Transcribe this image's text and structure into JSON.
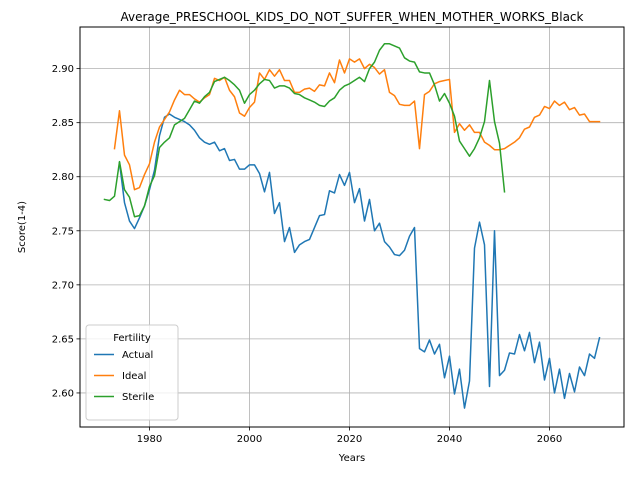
{
  "chart_data": {
    "type": "line",
    "title": "Average_PRESCHOOL_KIDS_DO_NOT_SUFFER_WHEN_MOTHER_WORKS_Black",
    "xlabel": "Years",
    "ylabel": "Score(1-4)",
    "xlim": [
      1966.1,
      2074.9
    ],
    "ylim": [
      2.5685,
      2.9385
    ],
    "xticks": [
      1980,
      2000,
      2020,
      2040,
      2060
    ],
    "yticks": [
      2.6,
      2.65,
      2.7,
      2.75,
      2.8,
      2.85,
      2.9
    ],
    "ytick_labels": [
      "2.60",
      "2.65",
      "2.70",
      "2.75",
      "2.80",
      "2.85",
      "2.90"
    ],
    "grid": true,
    "legend": {
      "title": "Fertility",
      "placement": "lower-left"
    },
    "colors": {
      "Actual": "#1f77b4",
      "Ideal": "#ff7f0e",
      "Sterile": "#2ca02c"
    },
    "series": [
      {
        "name": "Actual",
        "points": [
          [
            1974,
            2.813
          ],
          [
            1975,
            2.776
          ],
          [
            1976,
            2.759
          ],
          [
            1977,
            2.752
          ],
          [
            1978,
            2.762
          ],
          [
            1979,
            2.773
          ],
          [
            1980,
            2.788
          ],
          [
            1981,
            2.806
          ],
          [
            1982,
            2.838
          ],
          [
            1983,
            2.855
          ],
          [
            1984,
            2.858
          ],
          [
            1985,
            2.855
          ],
          [
            1986,
            2.853
          ],
          [
            1987,
            2.851
          ],
          [
            1988,
            2.848
          ],
          [
            1989,
            2.843
          ],
          [
            1990,
            2.836
          ],
          [
            1991,
            2.832
          ],
          [
            1992,
            2.83
          ],
          [
            1993,
            2.832
          ],
          [
            1994,
            2.824
          ],
          [
            1995,
            2.826
          ],
          [
            1996,
            2.815
          ],
          [
            1997,
            2.816
          ],
          [
            1998,
            2.807
          ],
          [
            1999,
            2.807
          ],
          [
            2000,
            2.811
          ],
          [
            2001,
            2.811
          ],
          [
            2002,
            2.803
          ],
          [
            2003,
            2.786
          ],
          [
            2004,
            2.804
          ],
          [
            2005,
            2.766
          ],
          [
            2006,
            2.776
          ],
          [
            2007,
            2.74
          ],
          [
            2008,
            2.753
          ],
          [
            2009,
            2.73
          ],
          [
            2010,
            2.737
          ],
          [
            2011,
            2.74
          ],
          [
            2012,
            2.742
          ],
          [
            2013,
            2.753
          ],
          [
            2014,
            2.764
          ],
          [
            2015,
            2.765
          ],
          [
            2016,
            2.787
          ],
          [
            2017,
            2.785
          ],
          [
            2018,
            2.802
          ],
          [
            2019,
            2.792
          ],
          [
            2020,
            2.804
          ],
          [
            2021,
            2.776
          ],
          [
            2022,
            2.789
          ],
          [
            2023,
            2.759
          ],
          [
            2024,
            2.779
          ],
          [
            2025,
            2.75
          ],
          [
            2026,
            2.757
          ],
          [
            2027,
            2.74
          ],
          [
            2028,
            2.735
          ],
          [
            2029,
            2.728
          ],
          [
            2030,
            2.727
          ],
          [
            2031,
            2.732
          ],
          [
            2032,
            2.745
          ],
          [
            2033,
            2.753
          ],
          [
            2034,
            2.641
          ],
          [
            2035,
            2.638
          ],
          [
            2036,
            2.649
          ],
          [
            2037,
            2.636
          ],
          [
            2038,
            2.645
          ],
          [
            2039,
            2.614
          ],
          [
            2040,
            2.634
          ],
          [
            2041,
            2.599
          ],
          [
            2042,
            2.622
          ],
          [
            2043,
            2.586
          ],
          [
            2044,
            2.611
          ],
          [
            2045,
            2.734
          ],
          [
            2046,
            2.758
          ],
          [
            2047,
            2.737
          ],
          [
            2048,
            2.606
          ],
          [
            2049,
            2.75
          ],
          [
            2050,
            2.616
          ],
          [
            2051,
            2.621
          ],
          [
            2052,
            2.637
          ],
          [
            2053,
            2.636
          ],
          [
            2054,
            2.654
          ],
          [
            2055,
            2.639
          ],
          [
            2056,
            2.656
          ],
          [
            2057,
            2.628
          ],
          [
            2058,
            2.647
          ],
          [
            2059,
            2.612
          ],
          [
            2060,
            2.632
          ],
          [
            2061,
            2.6
          ],
          [
            2062,
            2.622
          ],
          [
            2063,
            2.595
          ],
          [
            2064,
            2.618
          ],
          [
            2065,
            2.601
          ],
          [
            2066,
            2.624
          ],
          [
            2067,
            2.616
          ],
          [
            2068,
            2.636
          ],
          [
            2069,
            2.632
          ],
          [
            2070,
            2.651
          ]
        ]
      },
      {
        "name": "Ideal",
        "points": [
          [
            1973,
            2.826
          ],
          [
            1974,
            2.861
          ],
          [
            1975,
            2.82
          ],
          [
            1976,
            2.811
          ],
          [
            1977,
            2.788
          ],
          [
            1978,
            2.79
          ],
          [
            1979,
            2.802
          ],
          [
            1980,
            2.812
          ],
          [
            1981,
            2.832
          ],
          [
            1982,
            2.846
          ],
          [
            1983,
            2.853
          ],
          [
            1984,
            2.86
          ],
          [
            1985,
            2.871
          ],
          [
            1986,
            2.88
          ],
          [
            1987,
            2.876
          ],
          [
            1988,
            2.876
          ],
          [
            1989,
            2.872
          ],
          [
            1990,
            2.869
          ],
          [
            1991,
            2.873
          ],
          [
            1992,
            2.876
          ],
          [
            1993,
            2.891
          ],
          [
            1994,
            2.889
          ],
          [
            1995,
            2.892
          ],
          [
            1996,
            2.88
          ],
          [
            1997,
            2.874
          ],
          [
            1998,
            2.859
          ],
          [
            1999,
            2.856
          ],
          [
            2000,
            2.864
          ],
          [
            2001,
            2.869
          ],
          [
            2002,
            2.896
          ],
          [
            2003,
            2.89
          ],
          [
            2004,
            2.899
          ],
          [
            2005,
            2.893
          ],
          [
            2006,
            2.899
          ],
          [
            2007,
            2.889
          ],
          [
            2008,
            2.889
          ],
          [
            2009,
            2.878
          ],
          [
            2010,
            2.878
          ],
          [
            2011,
            2.881
          ],
          [
            2012,
            2.882
          ],
          [
            2013,
            2.879
          ],
          [
            2014,
            2.885
          ],
          [
            2015,
            2.884
          ],
          [
            2016,
            2.896
          ],
          [
            2017,
            2.887
          ],
          [
            2018,
            2.908
          ],
          [
            2019,
            2.896
          ],
          [
            2020,
            2.909
          ],
          [
            2021,
            2.906
          ],
          [
            2022,
            2.909
          ],
          [
            2023,
            2.9
          ],
          [
            2024,
            2.904
          ],
          [
            2025,
            2.901
          ],
          [
            2026,
            2.895
          ],
          [
            2027,
            2.899
          ],
          [
            2028,
            2.878
          ],
          [
            2029,
            2.875
          ],
          [
            2030,
            2.867
          ],
          [
            2031,
            2.866
          ],
          [
            2032,
            2.866
          ],
          [
            2033,
            2.87
          ],
          [
            2034,
            2.826
          ],
          [
            2035,
            2.876
          ],
          [
            2036,
            2.879
          ],
          [
            2037,
            2.886
          ],
          [
            2038,
            2.888
          ],
          [
            2039,
            2.889
          ],
          [
            2040,
            2.89
          ],
          [
            2041,
            2.841
          ],
          [
            2042,
            2.849
          ],
          [
            2043,
            2.843
          ],
          [
            2044,
            2.848
          ],
          [
            2045,
            2.841
          ],
          [
            2046,
            2.841
          ],
          [
            2047,
            2.832
          ],
          [
            2048,
            2.829
          ],
          [
            2049,
            2.825
          ],
          [
            2050,
            2.825
          ],
          [
            2051,
            2.826
          ],
          [
            2052,
            2.829
          ],
          [
            2053,
            2.832
          ],
          [
            2054,
            2.836
          ],
          [
            2055,
            2.844
          ],
          [
            2056,
            2.846
          ],
          [
            2057,
            2.855
          ],
          [
            2058,
            2.857
          ],
          [
            2059,
            2.865
          ],
          [
            2060,
            2.863
          ],
          [
            2061,
            2.87
          ],
          [
            2062,
            2.866
          ],
          [
            2063,
            2.869
          ],
          [
            2064,
            2.862
          ],
          [
            2065,
            2.864
          ],
          [
            2066,
            2.857
          ],
          [
            2067,
            2.858
          ],
          [
            2068,
            2.851
          ],
          [
            2069,
            2.851
          ],
          [
            2070,
            2.851
          ]
        ]
      },
      {
        "name": "Sterile",
        "points": [
          [
            1971,
            2.779
          ],
          [
            1972,
            2.778
          ],
          [
            1973,
            2.782
          ],
          [
            1974,
            2.814
          ],
          [
            1975,
            2.788
          ],
          [
            1976,
            2.781
          ],
          [
            1977,
            2.763
          ],
          [
            1978,
            2.764
          ],
          [
            1979,
            2.773
          ],
          [
            1980,
            2.791
          ],
          [
            1981,
            2.801
          ],
          [
            1982,
            2.827
          ],
          [
            1983,
            2.832
          ],
          [
            1984,
            2.836
          ],
          [
            1985,
            2.848
          ],
          [
            1986,
            2.851
          ],
          [
            1987,
            2.854
          ],
          [
            1988,
            2.862
          ],
          [
            1989,
            2.87
          ],
          [
            1990,
            2.868
          ],
          [
            1991,
            2.874
          ],
          [
            1992,
            2.878
          ],
          [
            1993,
            2.888
          ],
          [
            1994,
            2.89
          ],
          [
            1995,
            2.892
          ],
          [
            1996,
            2.889
          ],
          [
            1997,
            2.885
          ],
          [
            1998,
            2.88
          ],
          [
            1999,
            2.868
          ],
          [
            2000,
            2.876
          ],
          [
            2001,
            2.88
          ],
          [
            2002,
            2.886
          ],
          [
            2003,
            2.89
          ],
          [
            2004,
            2.889
          ],
          [
            2005,
            2.882
          ],
          [
            2006,
            2.884
          ],
          [
            2007,
            2.884
          ],
          [
            2008,
            2.882
          ],
          [
            2009,
            2.877
          ],
          [
            2010,
            2.876
          ],
          [
            2011,
            2.873
          ],
          [
            2012,
            2.871
          ],
          [
            2013,
            2.869
          ],
          [
            2014,
            2.866
          ],
          [
            2015,
            2.865
          ],
          [
            2016,
            2.87
          ],
          [
            2017,
            2.873
          ],
          [
            2018,
            2.88
          ],
          [
            2019,
            2.884
          ],
          [
            2020,
            2.886
          ],
          [
            2021,
            2.889
          ],
          [
            2022,
            2.892
          ],
          [
            2023,
            2.888
          ],
          [
            2024,
            2.9
          ],
          [
            2025,
            2.906
          ],
          [
            2026,
            2.917
          ],
          [
            2027,
            2.923
          ],
          [
            2028,
            2.923
          ],
          [
            2029,
            2.921
          ],
          [
            2030,
            2.919
          ],
          [
            2031,
            2.91
          ],
          [
            2032,
            2.907
          ],
          [
            2033,
            2.906
          ],
          [
            2034,
            2.897
          ],
          [
            2035,
            2.896
          ],
          [
            2036,
            2.896
          ],
          [
            2037,
            2.885
          ],
          [
            2038,
            2.87
          ],
          [
            2039,
            2.877
          ],
          [
            2040,
            2.868
          ],
          [
            2041,
            2.856
          ],
          [
            2042,
            2.833
          ],
          [
            2043,
            2.826
          ],
          [
            2044,
            2.819
          ],
          [
            2045,
            2.826
          ],
          [
            2046,
            2.836
          ],
          [
            2047,
            2.851
          ],
          [
            2048,
            2.889
          ],
          [
            2049,
            2.851
          ],
          [
            2050,
            2.831
          ],
          [
            2051,
            2.786
          ]
        ]
      }
    ]
  }
}
